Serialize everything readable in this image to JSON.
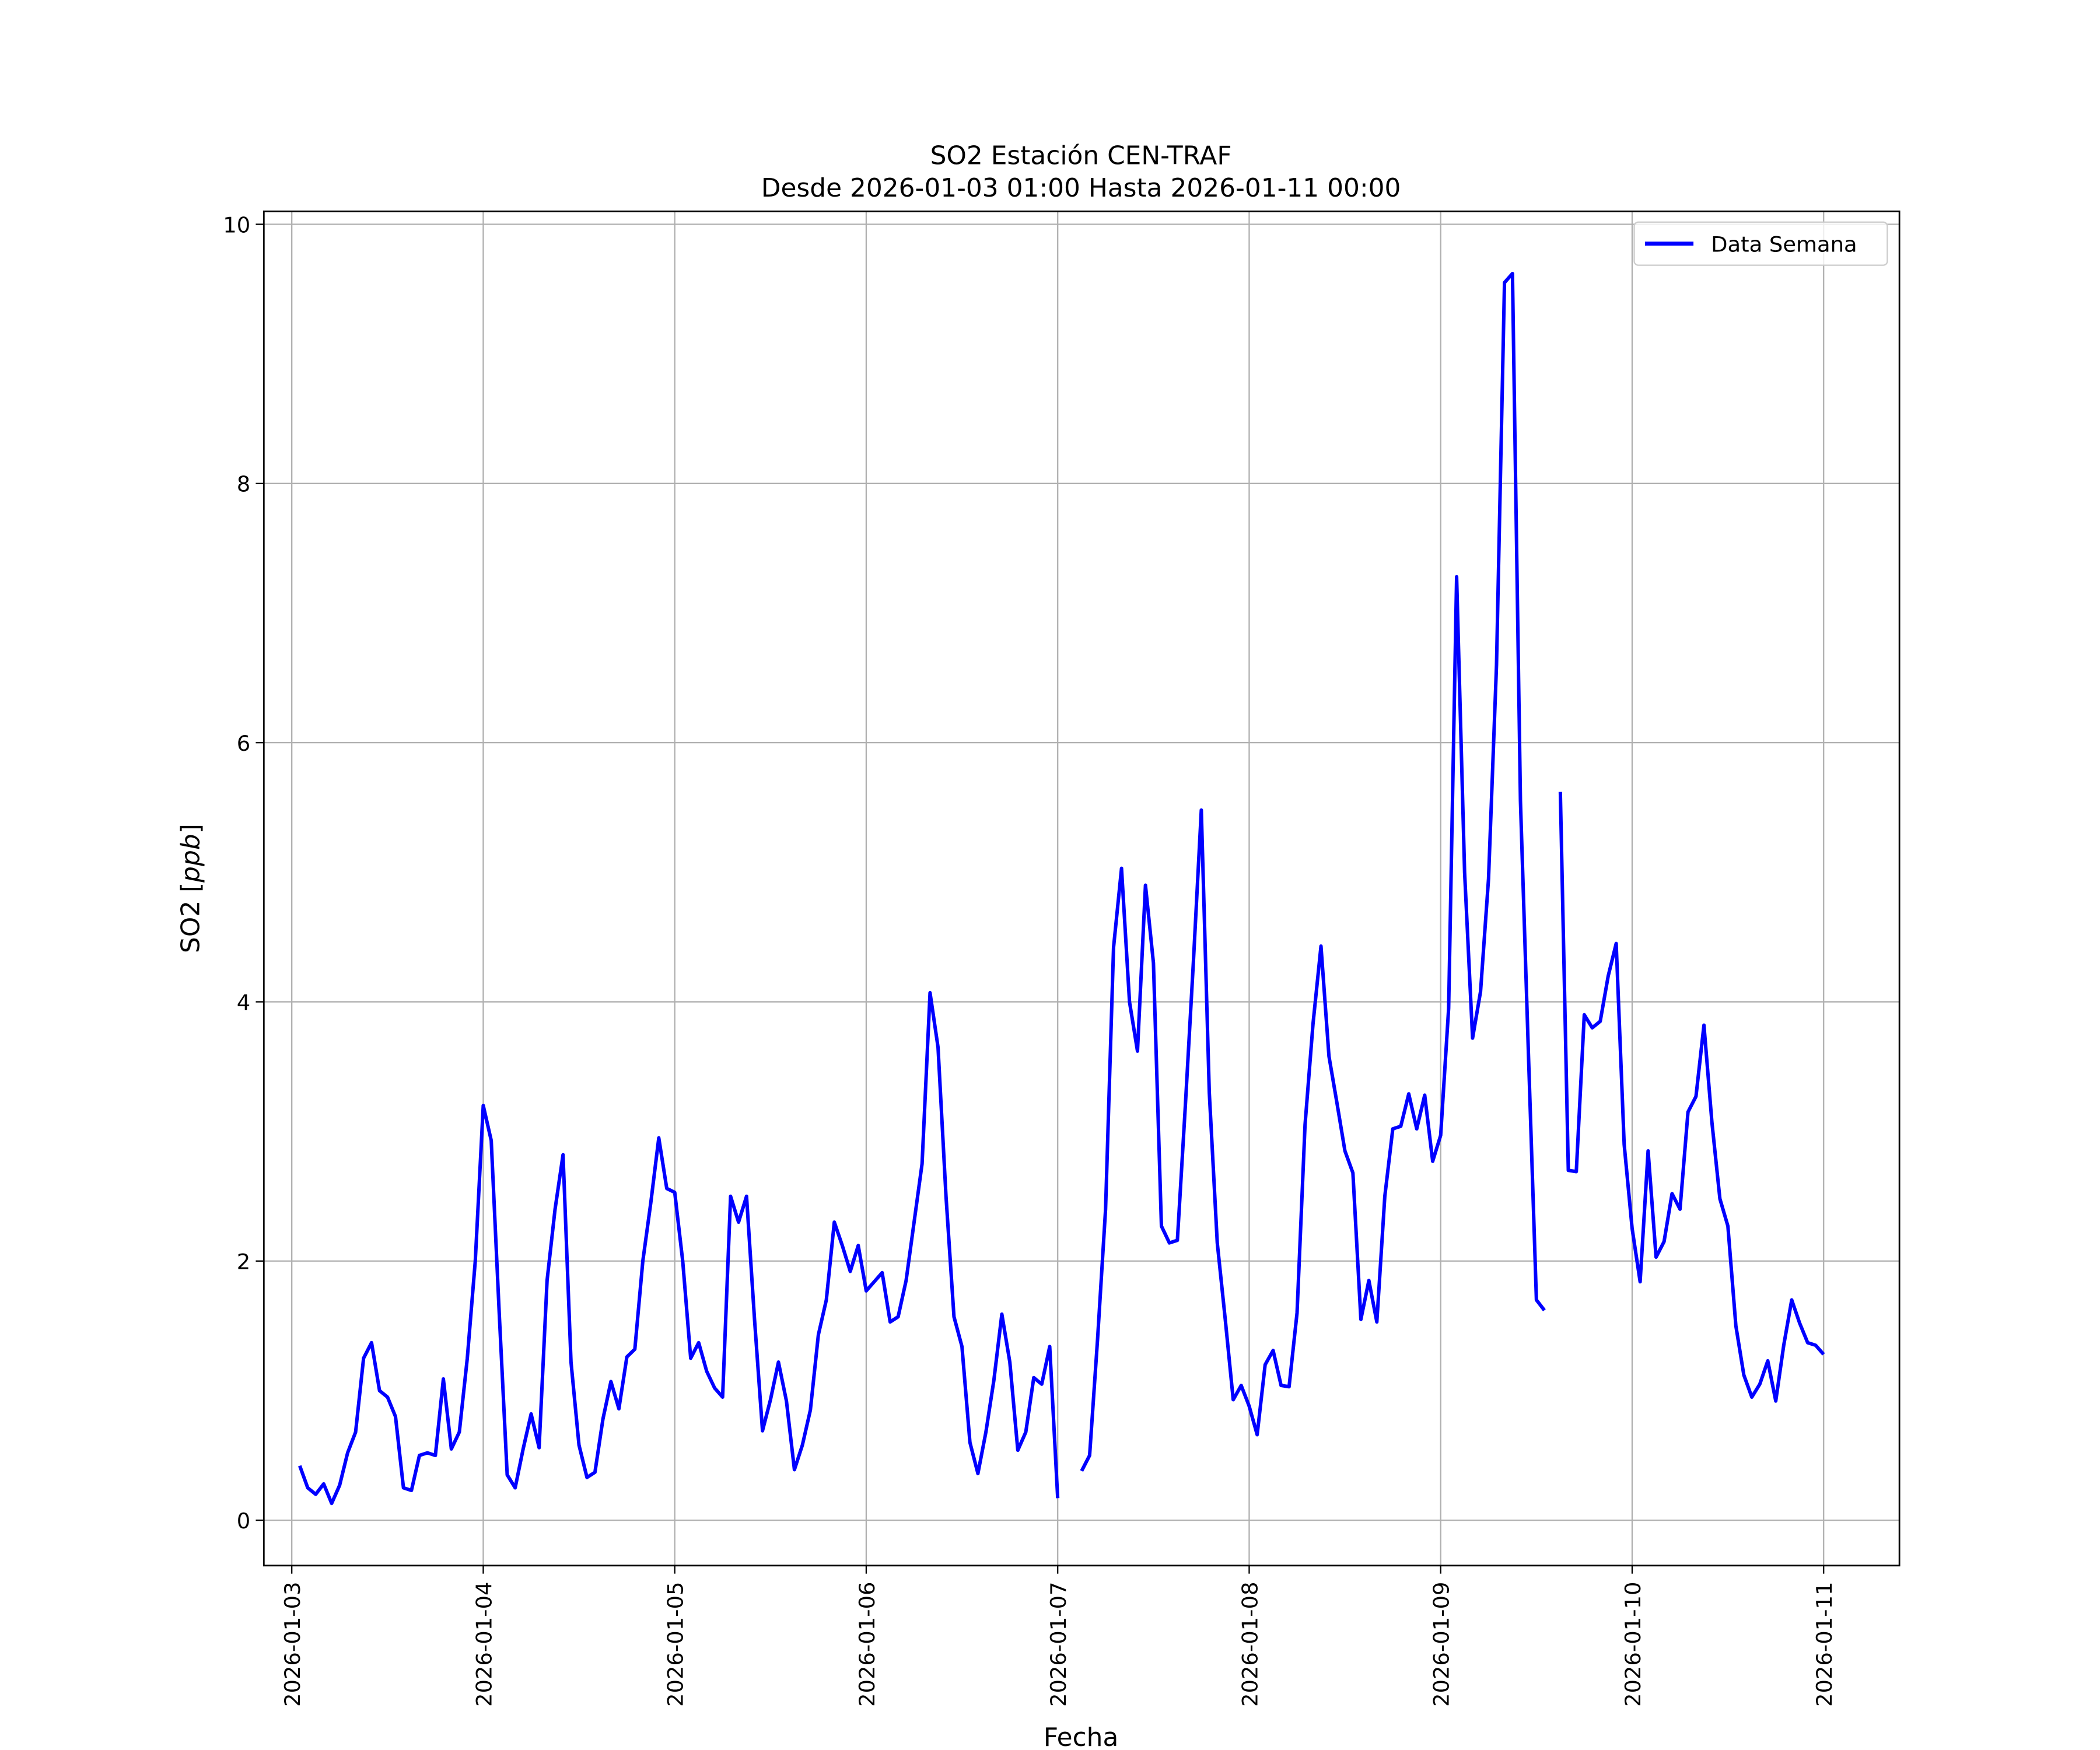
{
  "chart_data": {
    "type": "line",
    "title": "SO2 Estación CEN-TRAF",
    "subtitle": "Desde 2026-01-03 01:00 Hasta 2026-01-11 00:00",
    "xlabel": "Fecha",
    "ylabel": "SO2 [ppb]",
    "ylabel_plain": "SO2 [",
    "ylabel_italic": "ppb",
    "ylabel_close": "]",
    "x_start": "2026-01-03 01:00",
    "x_interval_hours": 1,
    "xlim_hours_from_2026_01_03": [
      -3.5,
      201.5
    ],
    "ylim": [
      -0.35,
      10.1
    ],
    "grid": true,
    "legend_position": "top-right",
    "x_ticks": [
      "2026-01-03",
      "2026-01-04",
      "2026-01-05",
      "2026-01-06",
      "2026-01-07",
      "2026-01-08",
      "2026-01-09",
      "2026-01-10",
      "2026-01-11"
    ],
    "y_ticks": [
      0,
      2,
      4,
      6,
      8,
      10
    ],
    "series": [
      {
        "name": "Data Semana",
        "color": "#0000ff",
        "values": [
          0.42,
          0.25,
          0.2,
          0.28,
          0.13,
          0.27,
          0.52,
          0.68,
          1.25,
          1.37,
          1.0,
          0.95,
          0.8,
          0.25,
          0.23,
          0.5,
          0.52,
          0.5,
          1.09,
          0.55,
          0.68,
          1.25,
          2.0,
          3.2,
          2.93,
          1.6,
          0.35,
          0.25,
          0.55,
          0.82,
          0.56,
          1.85,
          2.4,
          2.82,
          1.22,
          0.58,
          0.33,
          0.37,
          0.78,
          1.07,
          0.86,
          1.26,
          1.32,
          2.0,
          2.45,
          2.95,
          2.56,
          2.53,
          2.0,
          1.25,
          1.37,
          1.15,
          1.02,
          0.95,
          2.5,
          2.3,
          2.5,
          1.55,
          0.69,
          0.93,
          1.22,
          0.92,
          0.39,
          0.58,
          0.85,
          1.43,
          1.7,
          2.3,
          2.12,
          1.92,
          2.12,
          1.77,
          1.84,
          1.91,
          1.53,
          1.57,
          1.85,
          2.3,
          2.75,
          4.07,
          3.65,
          2.5,
          1.57,
          1.34,
          0.6,
          0.36,
          0.68,
          1.08,
          1.59,
          1.22,
          0.54,
          0.68,
          1.1,
          1.05,
          1.34,
          0.17,
          null,
          null,
          0.38,
          0.5,
          1.4,
          2.4,
          4.42,
          5.03,
          4.0,
          3.62,
          4.9,
          4.3,
          2.27,
          2.14,
          2.16,
          3.2,
          4.3,
          5.48,
          3.3,
          2.14,
          1.55,
          0.93,
          1.04,
          0.88,
          0.66,
          1.2,
          1.31,
          1.04,
          1.03,
          1.6,
          3.05,
          3.83,
          4.43,
          3.58,
          3.22,
          2.85,
          2.68,
          1.55,
          1.85,
          1.53,
          2.5,
          3.02,
          3.04,
          3.29,
          3.02,
          3.28,
          2.77,
          2.97,
          3.95,
          7.28,
          5.0,
          3.72,
          4.08,
          4.95,
          6.6,
          9.55,
          9.62,
          5.55,
          3.6,
          1.7,
          1.62,
          null,
          5.62,
          2.7,
          2.69,
          3.9,
          3.8,
          3.85,
          4.2,
          4.45,
          2.9,
          2.25,
          1.84,
          2.85,
          2.03,
          2.15,
          2.52,
          2.4,
          3.15,
          3.27,
          3.82,
          3.07,
          2.48,
          2.27,
          1.5,
          1.12,
          0.95,
          1.05,
          1.23,
          0.92,
          1.35,
          1.7,
          1.52,
          1.37,
          1.35,
          1.28
        ]
      }
    ]
  }
}
